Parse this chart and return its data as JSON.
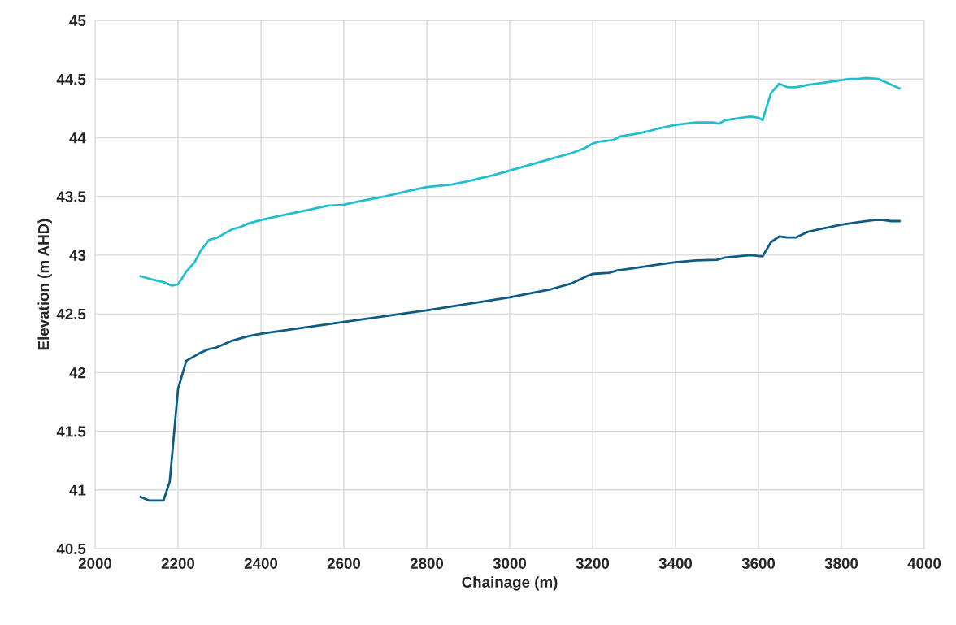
{
  "chart_data": {
    "type": "line",
    "xlabel": "Chainage (m)",
    "ylabel": "Elevation (m AHD)",
    "xlim": [
      2000,
      4000
    ],
    "xticks": [
      2000,
      2200,
      2400,
      2600,
      2800,
      3000,
      3200,
      3400,
      3600,
      3800,
      4000
    ],
    "ylim": [
      40.5,
      45
    ],
    "yticks": [
      40.5,
      41,
      41.5,
      42,
      42.5,
      43,
      43.5,
      44,
      44.5,
      45
    ],
    "grid": true,
    "marker": "none",
    "line_style": "solid",
    "series": [
      {
        "color": "#1fbfcf",
        "x": [
          2110,
          2140,
          2165,
          2185,
          2200,
          2220,
          2240,
          2255,
          2275,
          2295,
          2310,
          2330,
          2350,
          2370,
          2400,
          2440,
          2480,
          2520,
          2560,
          2600,
          2640,
          2700,
          2760,
          2800,
          2860,
          2900,
          2960,
          3000,
          3050,
          3100,
          3150,
          3180,
          3200,
          3220,
          3250,
          3265,
          3300,
          3340,
          3360,
          3400,
          3450,
          3490,
          3505,
          3520,
          3560,
          3580,
          3600,
          3610,
          3630,
          3650,
          3670,
          3690,
          3720,
          3760,
          3800,
          3820,
          3840,
          3860,
          3890,
          3940
        ],
        "values": [
          42.82,
          42.79,
          42.77,
          42.74,
          42.75,
          42.86,
          42.94,
          43.04,
          43.13,
          43.15,
          43.18,
          43.22,
          43.24,
          43.27,
          43.3,
          43.33,
          43.36,
          43.39,
          43.42,
          43.43,
          43.46,
          43.5,
          43.55,
          43.58,
          43.6,
          43.63,
          43.68,
          43.72,
          43.77,
          43.82,
          43.87,
          43.91,
          43.95,
          43.97,
          43.98,
          44.01,
          44.03,
          44.06,
          44.08,
          44.11,
          44.13,
          44.13,
          44.12,
          44.15,
          44.17,
          44.18,
          44.17,
          44.15,
          44.38,
          44.46,
          44.43,
          44.43,
          44.45,
          44.47,
          44.49,
          44.5,
          44.5,
          44.51,
          44.5,
          44.42
        ]
      },
      {
        "color": "#0d5c86",
        "x": [
          2110,
          2130,
          2165,
          2180,
          2200,
          2220,
          2240,
          2255,
          2275,
          2290,
          2310,
          2330,
          2350,
          2370,
          2400,
          2600,
          2800,
          3000,
          3100,
          3150,
          3185,
          3200,
          3240,
          3260,
          3300,
          3340,
          3360,
          3400,
          3450,
          3500,
          3520,
          3580,
          3610,
          3630,
          3650,
          3670,
          3690,
          3720,
          3760,
          3800,
          3840,
          3880,
          3900,
          3920,
          3940
        ],
        "values": [
          40.94,
          40.91,
          40.91,
          41.07,
          41.86,
          42.1,
          42.14,
          42.17,
          42.2,
          42.21,
          42.24,
          42.27,
          42.29,
          42.31,
          42.33,
          42.43,
          42.53,
          42.64,
          42.71,
          42.76,
          42.82,
          42.84,
          42.85,
          42.87,
          42.89,
          42.91,
          42.92,
          42.94,
          42.955,
          42.96,
          42.98,
          43.0,
          42.99,
          43.11,
          43.16,
          43.15,
          43.15,
          43.2,
          43.23,
          43.26,
          43.28,
          43.3,
          43.3,
          43.29,
          43.29
        ]
      }
    ]
  }
}
